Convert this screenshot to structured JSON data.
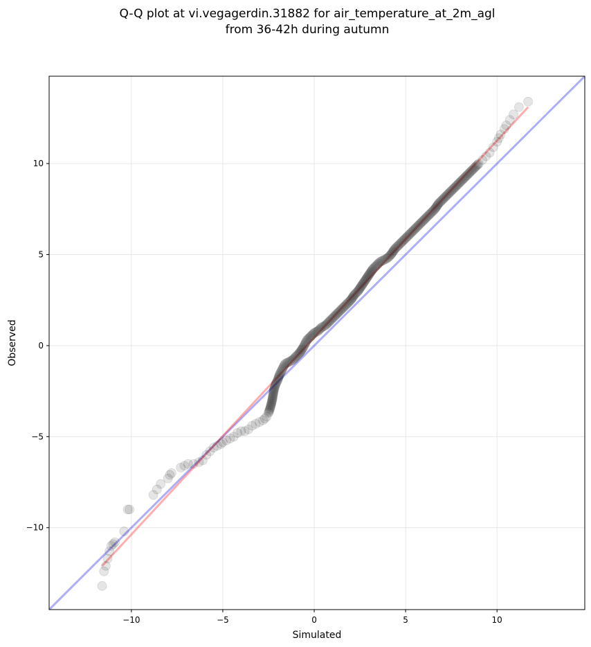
{
  "chart_data": {
    "type": "scatter",
    "title": "Q-Q plot at vi.vegagerdin.31882 for air_temperature_at_2m_agl",
    "subtitle": "from 36-42h during autumn",
    "xlabel": "Simulated",
    "ylabel": "Observed",
    "xlim": [
      -14.5,
      14.8
    ],
    "ylim": [
      -14.5,
      14.8
    ],
    "xticks": [
      -10,
      -5,
      0,
      5,
      10
    ],
    "yticks": [
      -10,
      -5,
      0,
      5,
      10
    ],
    "xtick_labels": [
      "−10",
      "−5",
      "0",
      "5",
      "10"
    ],
    "ytick_labels": [
      "−10",
      "−5",
      "0",
      "5",
      "10"
    ],
    "grid": true,
    "colors": {
      "points": "#000000",
      "fit_line": "#ff3333",
      "reference_line": "#3333ee"
    },
    "reference_line": {
      "from": [
        -14.5,
        -14.5
      ],
      "to": [
        14.8,
        14.8
      ]
    },
    "fit_line": {
      "from": [
        -11.6,
        -12.1
      ],
      "to": [
        11.7,
        13.1
      ]
    },
    "points": [
      [
        -11.6,
        -13.2
      ],
      [
        -11.5,
        -12.4
      ],
      [
        -11.4,
        -12.1
      ],
      [
        -11.3,
        -11.7
      ],
      [
        -11.2,
        -11.3
      ],
      [
        -11.1,
        -11.0
      ],
      [
        -11.0,
        -10.9
      ],
      [
        -10.9,
        -10.8
      ],
      [
        -10.4,
        -10.2
      ],
      [
        -10.2,
        -9.0
      ],
      [
        -10.1,
        -9.0
      ],
      [
        -8.8,
        -8.2
      ],
      [
        -8.6,
        -7.9
      ],
      [
        -8.4,
        -7.6
      ],
      [
        -8.0,
        -7.3
      ],
      [
        -7.9,
        -7.1
      ],
      [
        -7.8,
        -7.0
      ],
      [
        -7.3,
        -6.7
      ],
      [
        -7.1,
        -6.6
      ],
      [
        -6.9,
        -6.5
      ],
      [
        -6.6,
        -6.5
      ],
      [
        -6.3,
        -6.4
      ],
      [
        -6.1,
        -6.3
      ],
      [
        -5.9,
        -6.0
      ],
      [
        -5.7,
        -5.8
      ],
      [
        -5.5,
        -5.6
      ],
      [
        -5.3,
        -5.5
      ],
      [
        -5.1,
        -5.4
      ],
      [
        -5.0,
        -5.3
      ],
      [
        -4.8,
        -5.2
      ],
      [
        -4.6,
        -5.1
      ],
      [
        -4.4,
        -5.0
      ],
      [
        -4.2,
        -4.8
      ],
      [
        -4.0,
        -4.7
      ],
      [
        -3.8,
        -4.7
      ],
      [
        -3.6,
        -4.6
      ],
      [
        -3.4,
        -4.4
      ],
      [
        -3.2,
        -4.3
      ],
      [
        -3.0,
        -4.2
      ],
      [
        -2.8,
        -4.1
      ],
      [
        -2.7,
        -4.0
      ],
      [
        -2.6,
        -3.9
      ],
      [
        -2.5,
        -3.7
      ],
      [
        -2.4,
        -3.4
      ],
      [
        -2.3,
        -3.0
      ],
      [
        -2.25,
        -2.7
      ],
      [
        -2.2,
        -2.4
      ],
      [
        -2.1,
        -2.1
      ],
      [
        -2.0,
        -1.9
      ],
      [
        -1.9,
        -1.6
      ],
      [
        -1.8,
        -1.4
      ],
      [
        -1.7,
        -1.2
      ],
      [
        -1.6,
        -1.0
      ],
      [
        -1.4,
        -0.9
      ],
      [
        -1.2,
        -0.8
      ],
      [
        -1.0,
        -0.6
      ],
      [
        -0.8,
        -0.4
      ],
      [
        -0.6,
        -0.1
      ],
      [
        -0.5,
        0.1
      ],
      [
        -0.4,
        0.3
      ],
      [
        -0.2,
        0.5
      ],
      [
        0.0,
        0.7
      ],
      [
        0.2,
        0.8
      ],
      [
        0.4,
        1.0
      ],
      [
        0.6,
        1.1
      ],
      [
        0.8,
        1.3
      ],
      [
        1.0,
        1.5
      ],
      [
        1.2,
        1.7
      ],
      [
        1.4,
        1.9
      ],
      [
        1.6,
        2.1
      ],
      [
        1.8,
        2.3
      ],
      [
        2.0,
        2.5
      ],
      [
        2.2,
        2.8
      ],
      [
        2.4,
        3.0
      ],
      [
        2.6,
        3.3
      ],
      [
        2.8,
        3.6
      ],
      [
        3.0,
        3.9
      ],
      [
        3.2,
        4.2
      ],
      [
        3.4,
        4.4
      ],
      [
        3.6,
        4.6
      ],
      [
        3.8,
        4.7
      ],
      [
        4.0,
        4.8
      ],
      [
        4.2,
        5.0
      ],
      [
        4.4,
        5.3
      ],
      [
        4.6,
        5.5
      ],
      [
        4.8,
        5.7
      ],
      [
        5.0,
        5.9
      ],
      [
        5.2,
        6.1
      ],
      [
        5.4,
        6.3
      ],
      [
        5.6,
        6.5
      ],
      [
        5.8,
        6.7
      ],
      [
        6.0,
        6.9
      ],
      [
        6.2,
        7.1
      ],
      [
        6.4,
        7.3
      ],
      [
        6.6,
        7.5
      ],
      [
        6.8,
        7.8
      ],
      [
        7.0,
        8.0
      ],
      [
        7.2,
        8.2
      ],
      [
        7.4,
        8.4
      ],
      [
        7.6,
        8.6
      ],
      [
        7.8,
        8.8
      ],
      [
        8.0,
        9.0
      ],
      [
        8.2,
        9.2
      ],
      [
        8.4,
        9.4
      ],
      [
        8.6,
        9.6
      ],
      [
        8.8,
        9.8
      ],
      [
        9.0,
        10.0
      ],
      [
        9.2,
        10.2
      ],
      [
        9.4,
        10.4
      ],
      [
        9.6,
        10.6
      ],
      [
        9.8,
        10.9
      ],
      [
        10.0,
        11.2
      ],
      [
        10.1,
        11.4
      ],
      [
        10.2,
        11.6
      ],
      [
        10.4,
        11.9
      ],
      [
        10.5,
        12.1
      ],
      [
        10.7,
        12.4
      ],
      [
        10.9,
        12.7
      ],
      [
        11.2,
        13.1
      ],
      [
        11.7,
        13.4
      ]
    ]
  }
}
